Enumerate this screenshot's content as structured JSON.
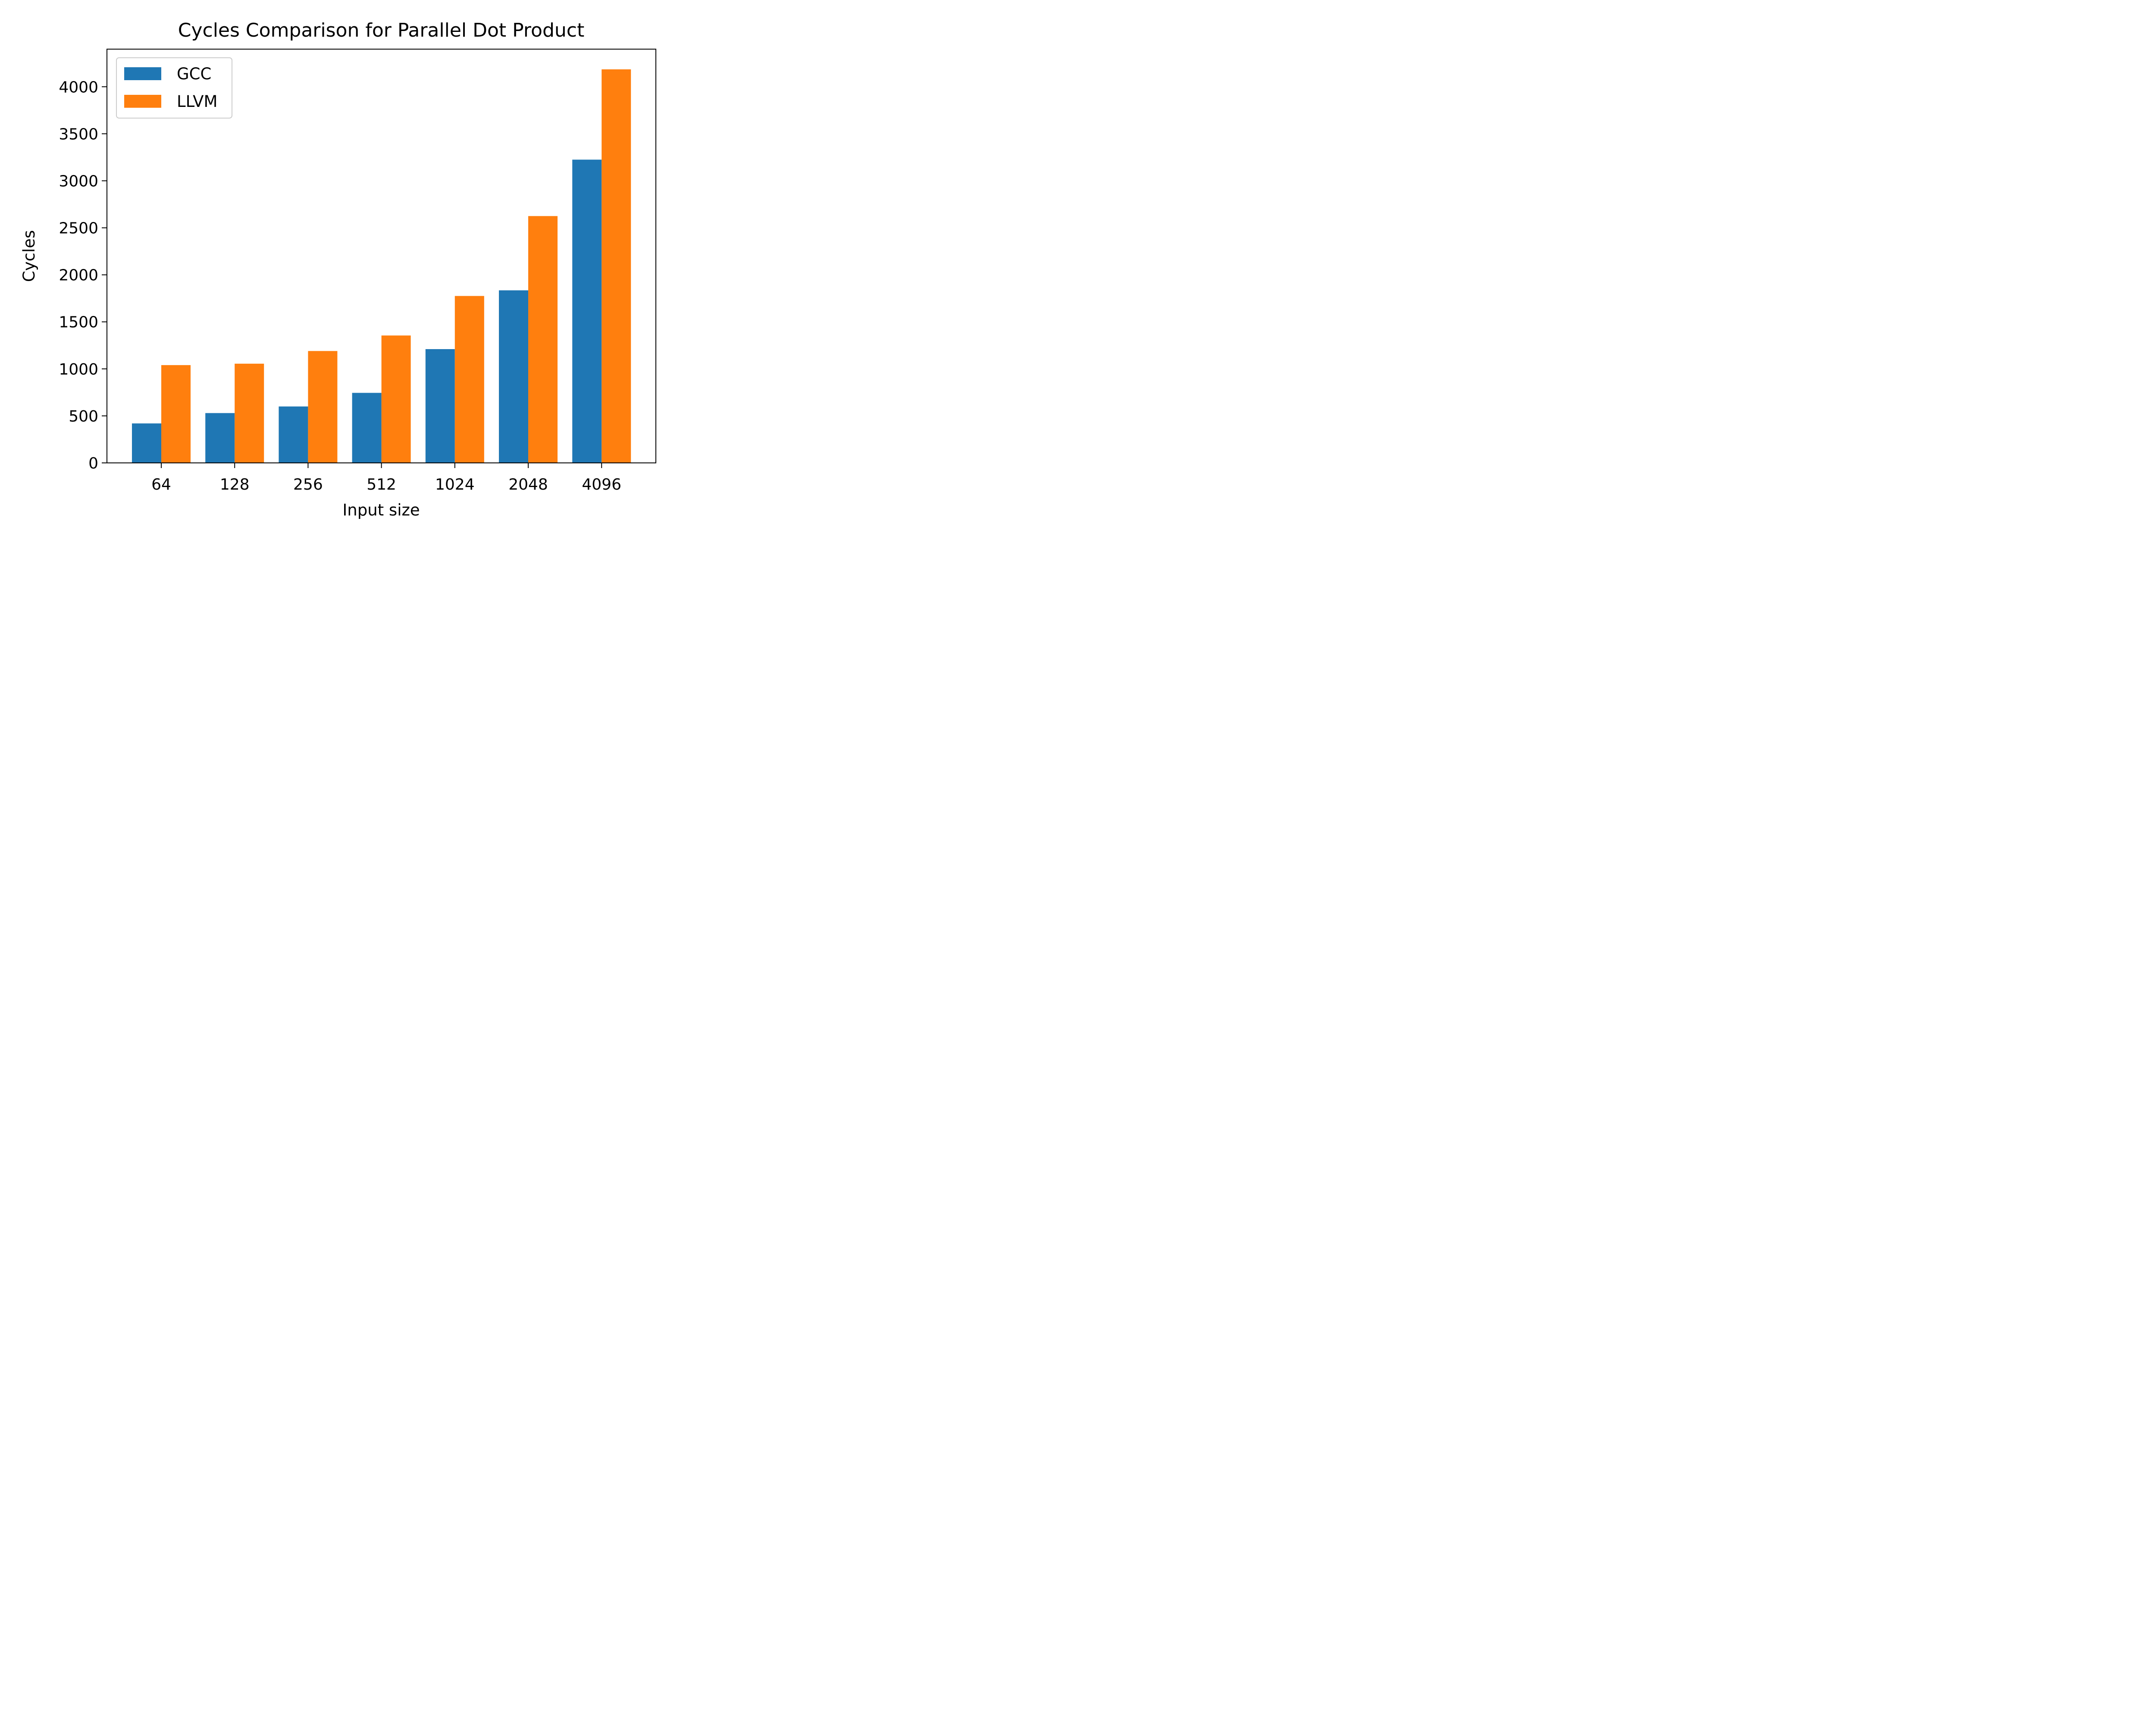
{
  "chart_data": {
    "type": "bar",
    "title": "Cycles Comparison for Parallel Dot Product",
    "xlabel": "Input size",
    "ylabel": "Cycles",
    "categories": [
      "64",
      "128",
      "256",
      "512",
      "1024",
      "2048",
      "4096"
    ],
    "series": [
      {
        "name": "GCC",
        "color": "#1f77b4",
        "values": [
          420,
          530,
          600,
          745,
          1210,
          1835,
          3225
        ]
      },
      {
        "name": "LLVM",
        "color": "#ff7f0e",
        "values": [
          1040,
          1055,
          1190,
          1355,
          1775,
          2625,
          4185
        ]
      }
    ],
    "ylim": [
      0,
      4400
    ],
    "yticks": [
      "0",
      "500",
      "1000",
      "1500",
      "2000",
      "2500",
      "3000",
      "3500",
      "4000"
    ],
    "legend": "top-left",
    "grid": false
  }
}
